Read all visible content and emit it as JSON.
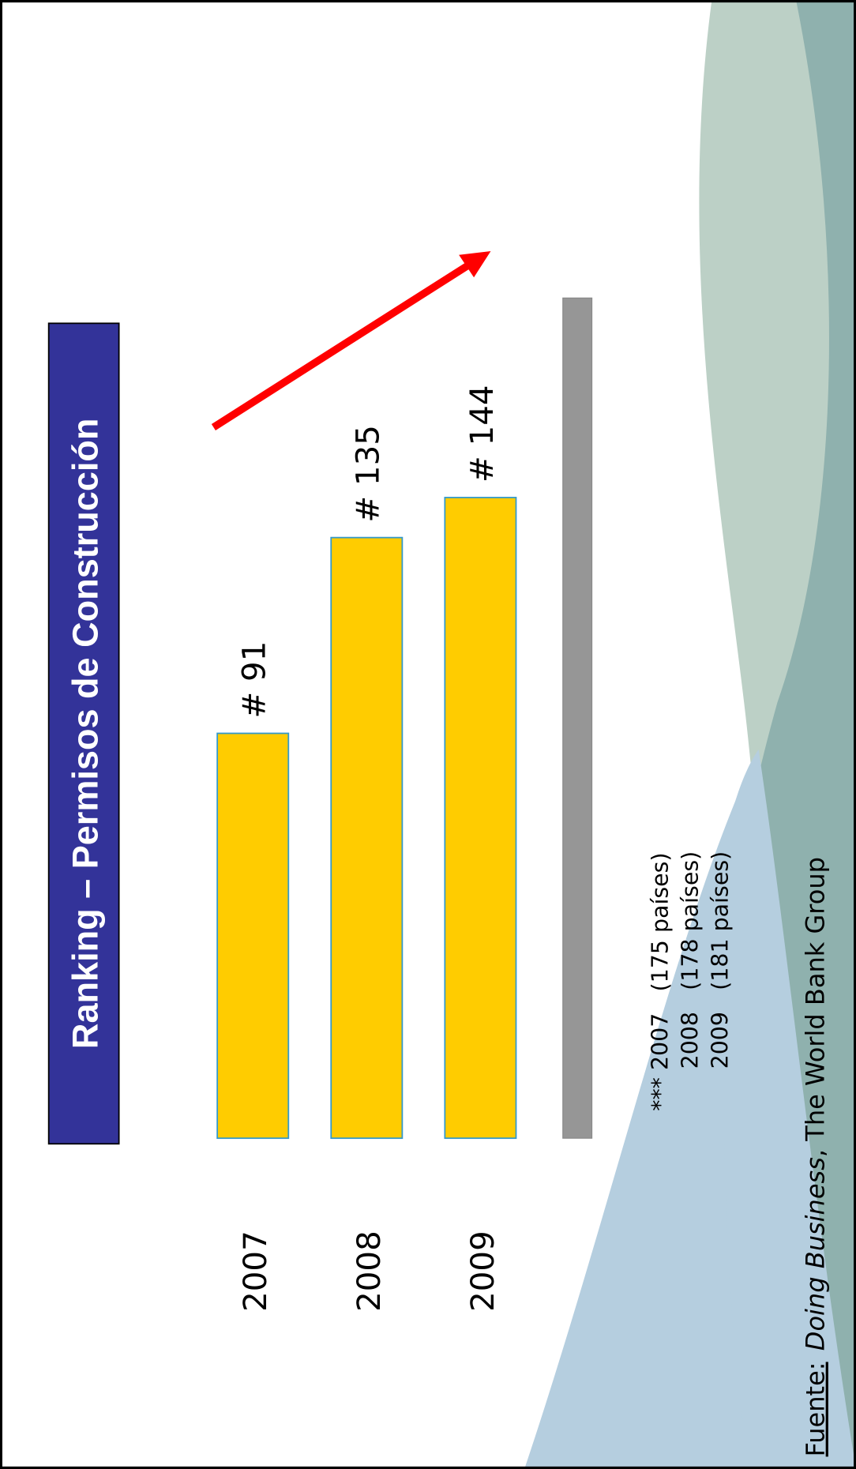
{
  "chart_data": {
    "type": "bar",
    "title": "Ranking – Permisos de Construcción",
    "categories": [
      "2007",
      "2008",
      "2009"
    ],
    "values": [
      91,
      135,
      144
    ],
    "value_labels": [
      "# 91",
      "# 135",
      "# 144"
    ],
    "color": "#ffcc00",
    "notes": [
      "*** 2007   (175 países)",
      "2008   (178 países)",
      "2009   (181 países)"
    ],
    "source": {
      "label": "Fuente:",
      "publication": "Doing Business",
      "publisher": ", The World Bank Group"
    }
  }
}
